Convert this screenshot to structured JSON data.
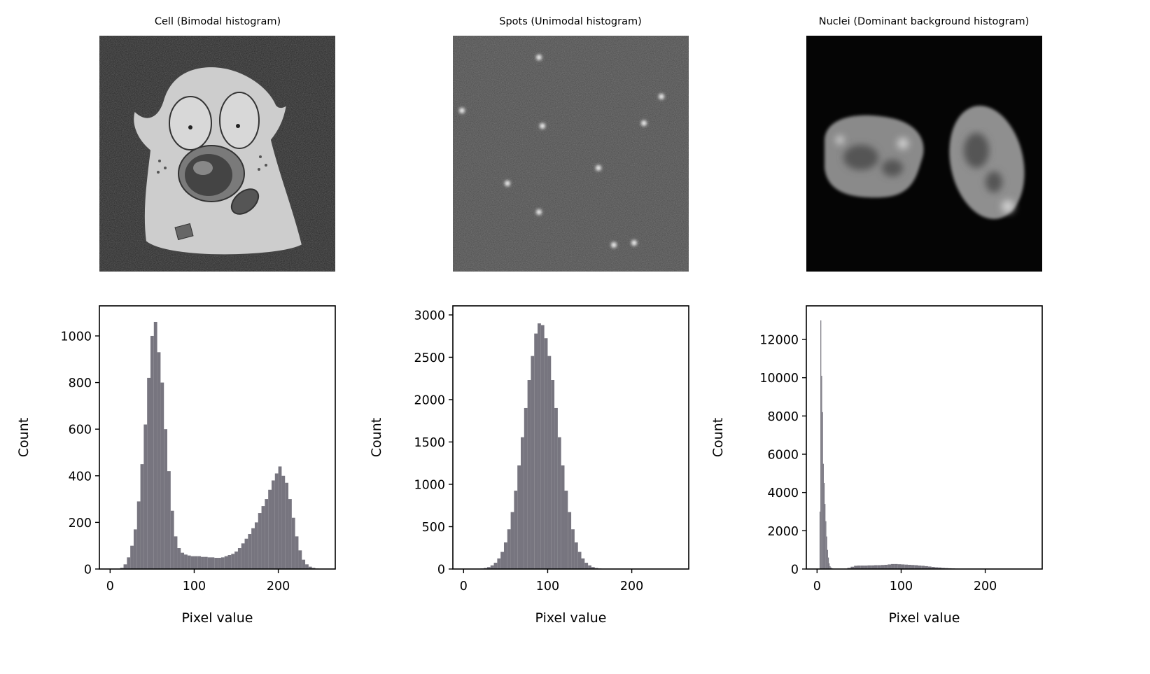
{
  "colors": {
    "bar": "#77757f",
    "axis": "#000000"
  },
  "chart_data": [
    {
      "type": "bar",
      "subtype": "histogram",
      "title": "Cell (Bimodal histogram)",
      "image": "cell-image",
      "xlabel": "Pixel value",
      "ylabel": "Count",
      "xlim": [
        -12.75,
        267.75
      ],
      "ylim": [
        0,
        1129
      ],
      "xticks": [
        0,
        100,
        200
      ],
      "xtick_labels": [
        "0",
        "100",
        "200"
      ],
      "yticks": [
        0,
        200,
        400,
        600,
        800,
        1000
      ],
      "ytick_labels": [
        "0",
        "200",
        "400",
        "600",
        "800",
        "1000"
      ],
      "segments": [
        {
          "start": 0,
          "width": 4,
          "counts": [
            0,
            0,
            0,
            5,
            20,
            50,
            100,
            170,
            290,
            450,
            620,
            820,
            1000,
            1060,
            930,
            800,
            600,
            420,
            250,
            140,
            90,
            70,
            62,
            58,
            55,
            55,
            55,
            52,
            52,
            50,
            50,
            48,
            48,
            50,
            55,
            60,
            65,
            75,
            90,
            110,
            130,
            150,
            175,
            200,
            240,
            270,
            300,
            340,
            380,
            410,
            440,
            400,
            370,
            300,
            220,
            140,
            80,
            40,
            20,
            10,
            5,
            2,
            0,
            0
          ]
        }
      ]
    },
    {
      "type": "bar",
      "subtype": "histogram",
      "title": "Spots (Unimodal histogram)",
      "image": "spots-image",
      "xlabel": "Pixel value",
      "ylabel": "Count",
      "xlim": [
        -12.75,
        267.75
      ],
      "ylim": [
        0,
        3107
      ],
      "xticks": [
        0,
        100,
        200
      ],
      "xtick_labels": [
        "0",
        "100",
        "200"
      ],
      "yticks": [
        0,
        500,
        1000,
        1500,
        2000,
        2500,
        3000
      ],
      "ytick_labels": [
        "0",
        "500",
        "1000",
        "1500",
        "2000",
        "2500",
        "3000"
      ],
      "segments": [
        {
          "start": 0,
          "width": 4,
          "counts": [
            0,
            0,
            0,
            0,
            0,
            6,
            12,
            23,
            43,
            74,
            125,
            202,
            314,
            469,
            672,
            925,
            1223,
            1556,
            1901,
            2231,
            2515,
            2780,
            2900,
            2880,
            2725,
            2515,
            2231,
            1901,
            1556,
            1223,
            925,
            672,
            469,
            314,
            202,
            125,
            74,
            43,
            23,
            12,
            6,
            4,
            3,
            3,
            3,
            2,
            2,
            2,
            2,
            2,
            2,
            2,
            2,
            1,
            1,
            1,
            1,
            1,
            1,
            1,
            1,
            0,
            0,
            0
          ]
        }
      ]
    },
    {
      "type": "bar",
      "subtype": "histogram",
      "title": "Nuclei (Dominant background histogram)",
      "image": "nuclei-image",
      "xlabel": "Pixel value",
      "ylabel": "Count",
      "xlim": [
        -12.75,
        267.75
      ],
      "ylim": [
        0,
        13756
      ],
      "xticks": [
        0,
        100,
        200
      ],
      "xtick_labels": [
        "0",
        "100",
        "200"
      ],
      "yticks": [
        0,
        2000,
        4000,
        6000,
        8000,
        10000,
        12000
      ],
      "ytick_labels": [
        "0",
        "2000",
        "4000",
        "6000",
        "8000",
        "10000",
        "12000"
      ],
      "segments": [
        {
          "start": 0,
          "width": 1,
          "counts": [
            0,
            0,
            0,
            3000,
            13000,
            10100,
            8200,
            5500,
            4500,
            3400,
            2500,
            1700,
            1000,
            600,
            300,
            150,
            80,
            50,
            30,
            20
          ]
        },
        {
          "start": 20,
          "width": 4,
          "counts": [
            15,
            10,
            10,
            20,
            60,
            120,
            170,
            180,
            180,
            180,
            190,
            190,
            200,
            200,
            210,
            220,
            240,
            260,
            260,
            250,
            240,
            230,
            220,
            210,
            200,
            180,
            170,
            150,
            130,
            110,
            90,
            80,
            60,
            50,
            40,
            30,
            20,
            15,
            10,
            5,
            0,
            0,
            0,
            0,
            0,
            0,
            0,
            0,
            0,
            0,
            0,
            0,
            0,
            0,
            0,
            0,
            0,
            0,
            0
          ]
        }
      ]
    }
  ]
}
